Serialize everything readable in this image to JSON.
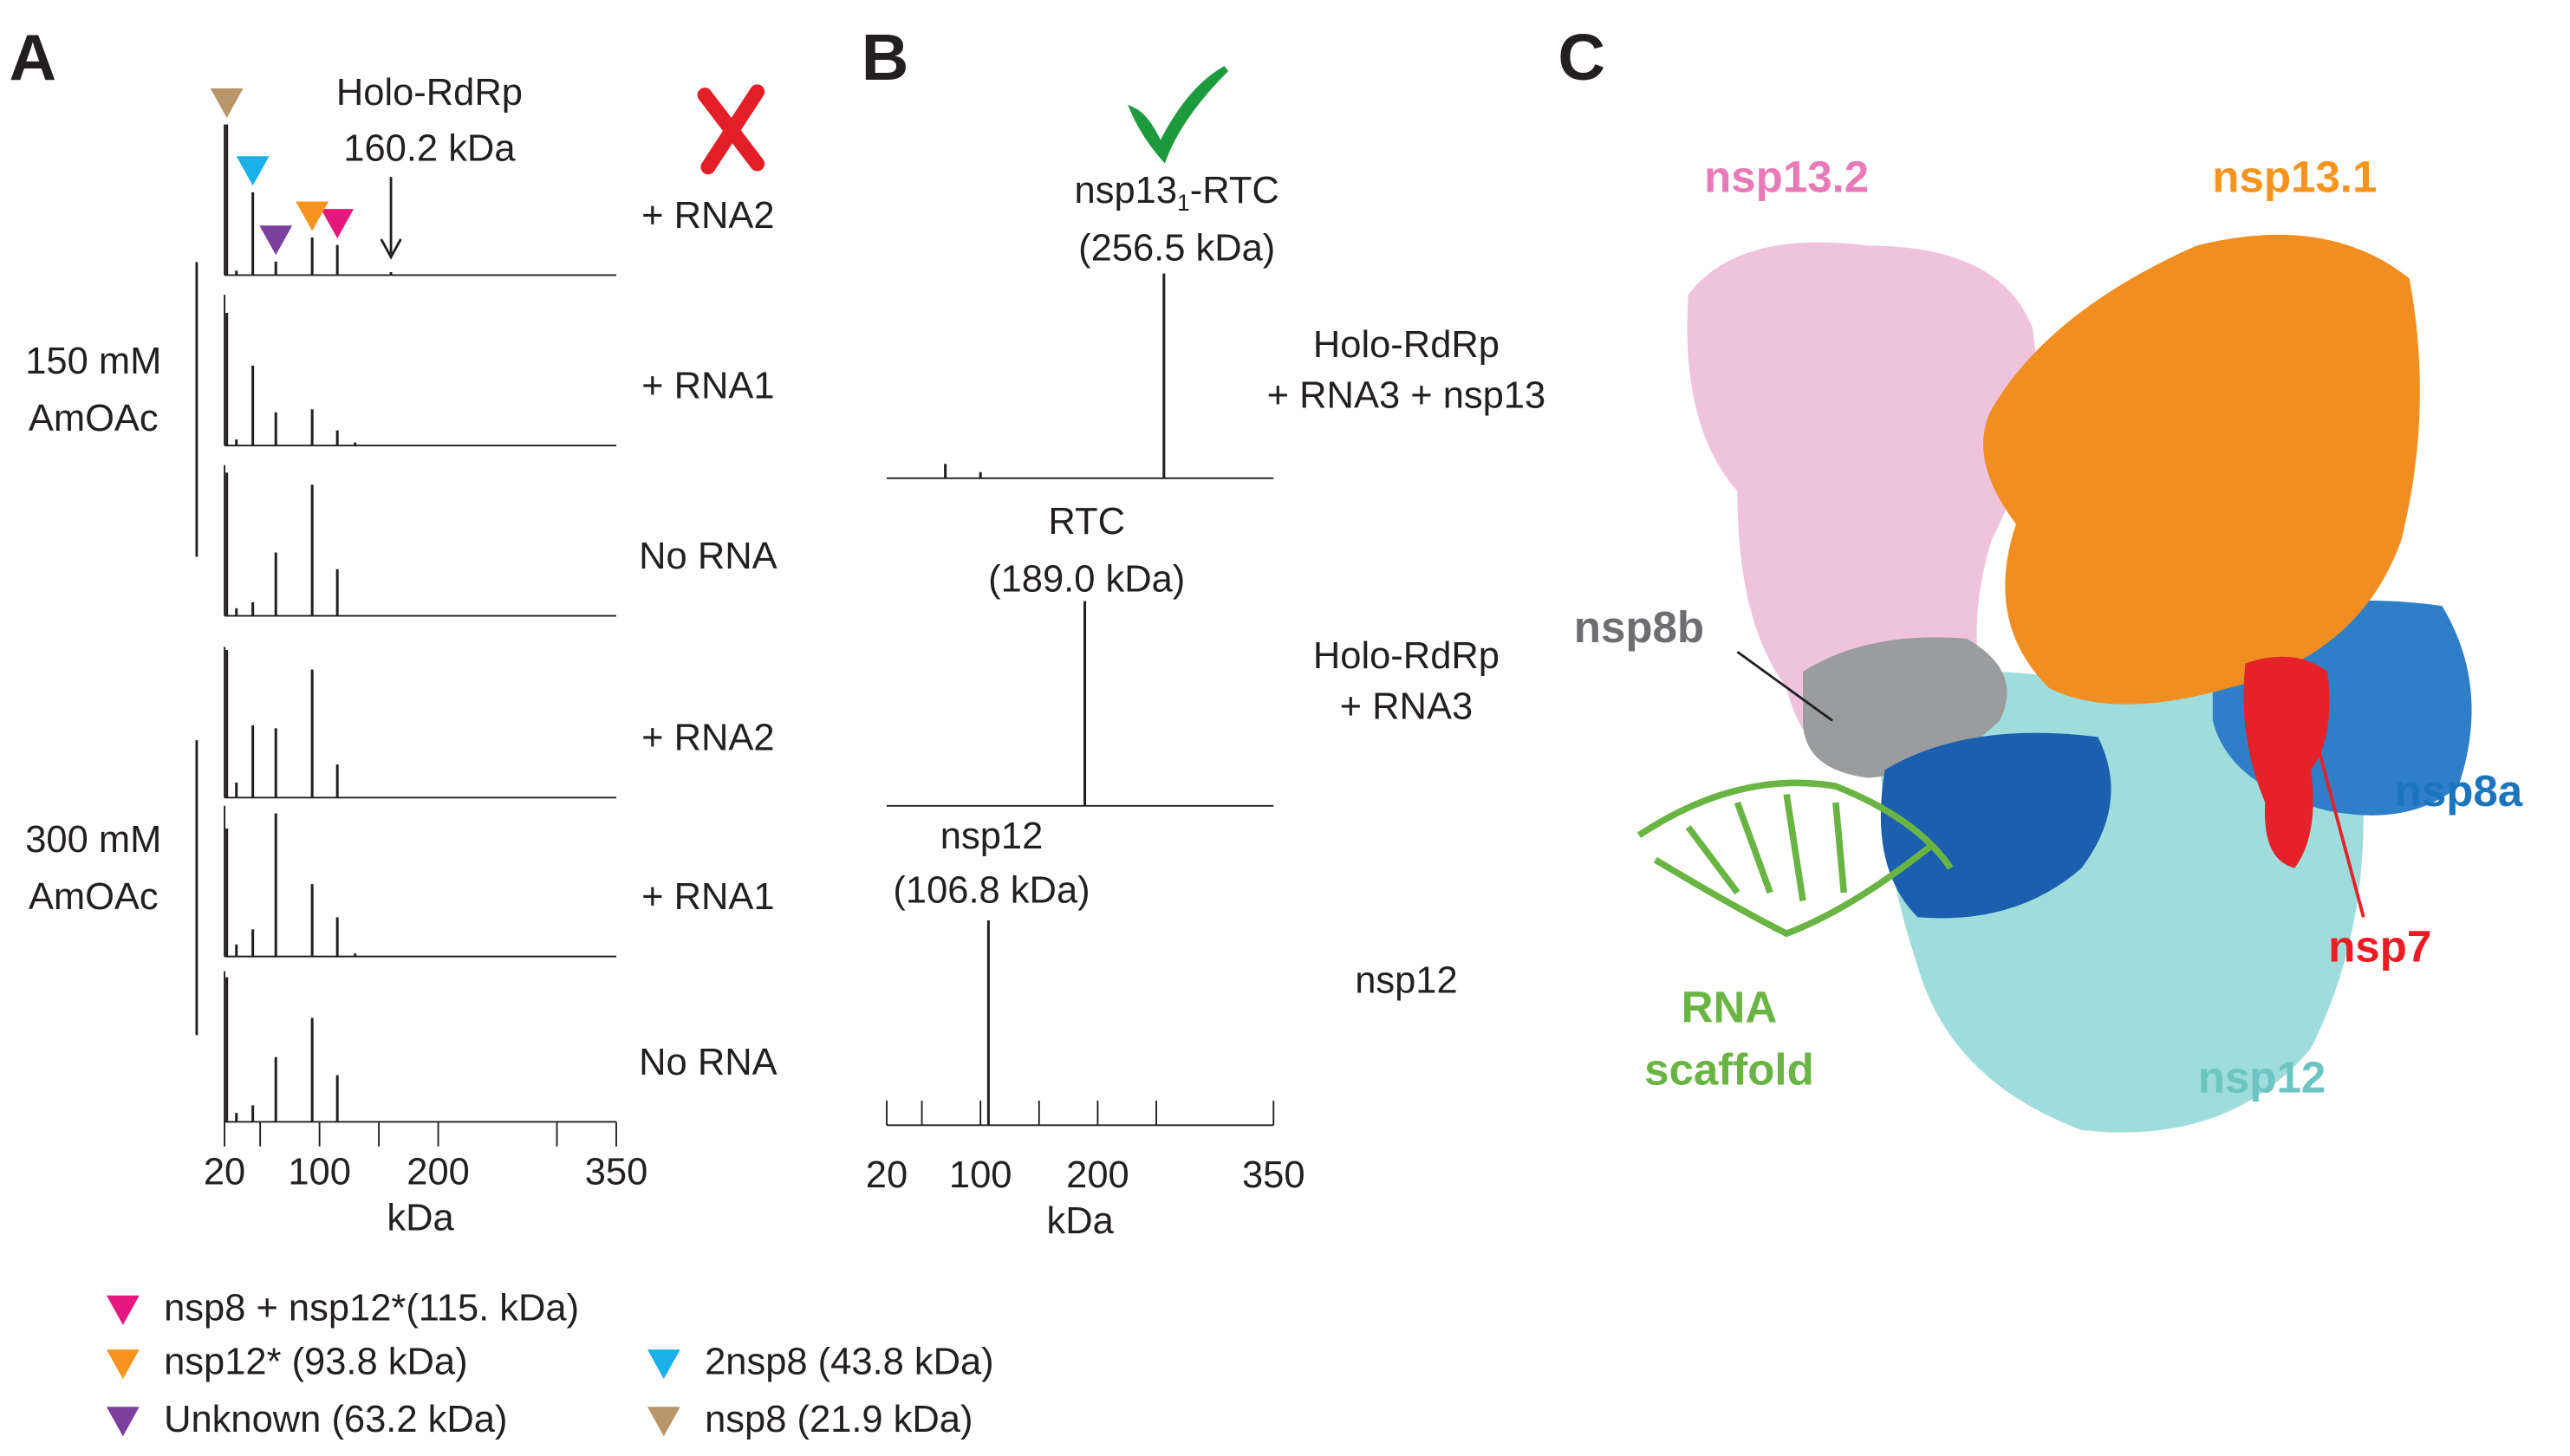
{
  "panels": [
    "A",
    "B",
    "C"
  ],
  "chart_data": [
    {
      "type": "spectrum",
      "x_label": "kDa",
      "xlim": [
        20,
        350
      ],
      "xticks": [
        20,
        100,
        200,
        350
      ],
      "minor_xticks": [
        50,
        150,
        300
      ],
      "ylim": [
        0,
        100
      ],
      "groups": [
        [
          "150 mM",
          "AmOAc"
        ],
        [
          "300 mM",
          "AmOAc"
        ]
      ],
      "spectra": [
        {
          "name": "+ RNA2",
          "x": [
            21.9,
            30,
            43.8,
            63.2,
            93.8,
            115,
            160.2
          ],
          "values": [
            100,
            3,
            55,
            9,
            25,
            20,
            2
          ]
        },
        {
          "name": "+ RNA1",
          "x": [
            21.9,
            30,
            43.8,
            63.2,
            93.8,
            115,
            130
          ],
          "values": [
            88,
            4,
            53,
            22,
            24,
            10,
            2
          ]
        },
        {
          "name": "No RNA",
          "x": [
            21.9,
            30,
            43.8,
            63.2,
            93.8,
            115
          ],
          "values": [
            95,
            5,
            9,
            42,
            87,
            31
          ]
        },
        {
          "name": "+ RNA2",
          "x": [
            21.9,
            30,
            43.8,
            63.2,
            93.8,
            115
          ],
          "values": [
            98,
            10,
            48,
            46,
            85,
            22
          ]
        },
        {
          "name": "+ RNA1",
          "x": [
            21.9,
            30,
            43.8,
            63.2,
            93.8,
            115,
            130
          ],
          "values": [
            85,
            8,
            18,
            95,
            48,
            26,
            2
          ]
        },
        {
          "name": "No RNA",
          "x": [
            21.9,
            30,
            43.8,
            63.2,
            93.8,
            115
          ],
          "values": [
            96,
            6,
            11,
            43,
            69,
            31
          ]
        }
      ],
      "annotation": {
        "lines": [
          "Holo-RdRp",
          "160.2 kDa"
        ],
        "x": 160.2
      },
      "markers": [
        {
          "label": "nsp8 + nsp12*(115. kDa)",
          "color": "#e6177f",
          "mass": 115
        },
        {
          "label": "nsp12* (93.8 kDa)",
          "color": "#f7941d",
          "mass": 93.8
        },
        {
          "label": "Unknown (63.2 kDa)",
          "color": "#7b3f9e",
          "mass": 63.2
        },
        {
          "label": "2nsp8 (43.8 kDa)",
          "color": "#1ab0e8",
          "mass": 43.8
        },
        {
          "label": "nsp8 (21.9 kDa)",
          "color": "#b8956a",
          "mass": 21.9
        }
      ]
    },
    {
      "type": "spectrum",
      "x_label": "kDa",
      "xlim": [
        20,
        350
      ],
      "xticks": [
        20,
        100,
        200,
        350
      ],
      "minor_xticks": [
        50,
        150,
        250
      ],
      "ylim": [
        0,
        100
      ],
      "spectra": [
        {
          "name": [
            "Holo-RdRp",
            "+ RNA3 + nsp13"
          ],
          "peak_label": [
            "nsp13",
            "1",
            "-RTC",
            "(256.5 kDa)"
          ],
          "x": [
            70,
            100,
            256.5
          ],
          "values": [
            7,
            3,
            100
          ]
        },
        {
          "name": [
            "Holo-RdRp",
            "+ RNA3"
          ],
          "peak_label": [
            "RTC",
            "(189.0 kDa)"
          ],
          "x": [
            189.0
          ],
          "values": [
            100
          ]
        },
        {
          "name": [
            "nsp12"
          ],
          "peak_label": [
            "nsp12",
            "(106.8 kDa)"
          ],
          "x": [
            106.8
          ],
          "values": [
            100
          ]
        }
      ]
    }
  ],
  "structure": {
    "labels": [
      "nsp13.2",
      "nsp13.1",
      "nsp8b",
      "nsp8a",
      "nsp7",
      "RNA",
      "scaffold",
      "nsp12"
    ]
  }
}
